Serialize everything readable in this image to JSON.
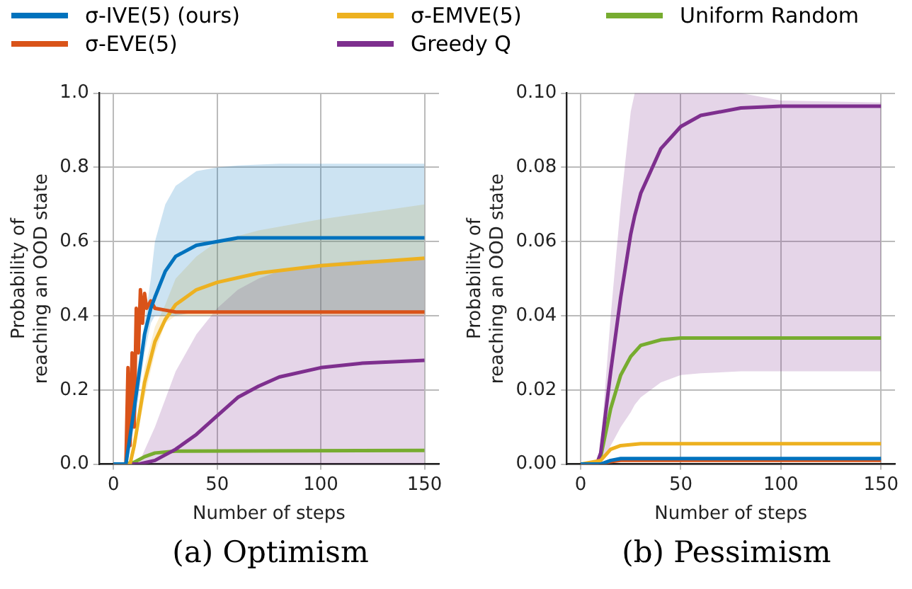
{
  "chart_data": [
    {
      "type": "line",
      "title": "(a) Optimism",
      "xlabel": "Number of steps",
      "ylabel": "Probability of reaching an OOD state",
      "legend": "top",
      "grid": true,
      "line_style": "solid",
      "marker": "none",
      "xlim": [
        -7,
        157
      ],
      "xticks": [
        0,
        50,
        100,
        150
      ],
      "ylim": [
        0,
        1
      ],
      "yticks": [
        {
          "value": 0,
          "label": "0.0"
        },
        {
          "value": 0.2,
          "label": "0.2"
        },
        {
          "value": 0.4,
          "label": "0.4"
        },
        {
          "value": 0.6,
          "label": "0.6"
        },
        {
          "value": 0.8,
          "label": "0.8"
        },
        {
          "value": 1,
          "label": "1.0"
        }
      ],
      "series": [
        {
          "name": "σ-IVE(5) (ours)",
          "color": "#0072bd",
          "x": [
            0,
            6,
            10,
            15,
            18,
            20,
            25,
            30,
            40,
            50,
            60,
            80,
            100,
            150
          ],
          "values": [
            0,
            0,
            0.15,
            0.35,
            0.42,
            0.45,
            0.52,
            0.56,
            0.59,
            0.6,
            0.61,
            0.61,
            0.61,
            0.61
          ],
          "lower": [
            0,
            0,
            0.1,
            0.3,
            0.38,
            0.4,
            0.4,
            0.4,
            0.41,
            0.41,
            0.41,
            0.41,
            0.41,
            0.41
          ],
          "upper": [
            0,
            0,
            0.2,
            0.38,
            0.5,
            0.6,
            0.7,
            0.75,
            0.79,
            0.8,
            0.805,
            0.81,
            0.81,
            0.81
          ]
        },
        {
          "name": "σ-EVE(5)",
          "color": "#d95319",
          "x": [
            0,
            6,
            7,
            8,
            9,
            10,
            11,
            12,
            13,
            14,
            15,
            16,
            18,
            20,
            25,
            30,
            40,
            150
          ],
          "values": [
            0,
            0,
            0.26,
            0.05,
            0.3,
            0.1,
            0.42,
            0.3,
            0.47,
            0.38,
            0.46,
            0.42,
            0.44,
            0.42,
            0.415,
            0.41,
            0.41,
            0.41
          ]
        },
        {
          "name": "σ-EMVE(5)",
          "color": "#edb120",
          "x": [
            0,
            8,
            10,
            15,
            20,
            25,
            30,
            40,
            50,
            70,
            100,
            150
          ],
          "values": [
            0,
            0,
            0.05,
            0.22,
            0.33,
            0.39,
            0.43,
            0.47,
            0.49,
            0.515,
            0.535,
            0.555
          ],
          "lower": [
            0,
            0,
            0.03,
            0.18,
            0.3,
            0.38,
            0.4,
            0.4,
            0.4,
            0.4,
            0.4,
            0.4
          ],
          "upper": [
            0,
            0,
            0.07,
            0.26,
            0.37,
            0.43,
            0.5,
            0.56,
            0.6,
            0.63,
            0.66,
            0.7
          ]
        },
        {
          "name": "Greedy Q",
          "color": "#7e2f8e",
          "x": [
            0,
            12,
            20,
            30,
            40,
            50,
            60,
            70,
            80,
            100,
            120,
            150
          ],
          "values": [
            0,
            0,
            0.01,
            0.04,
            0.08,
            0.13,
            0.18,
            0.21,
            0.235,
            0.26,
            0.272,
            0.28
          ],
          "lower": [
            0,
            0,
            0,
            0,
            0,
            0,
            0,
            0,
            0,
            0,
            0,
            0
          ],
          "upper": [
            0,
            0,
            0.1,
            0.25,
            0.35,
            0.42,
            0.47,
            0.5,
            0.52,
            0.54,
            0.55,
            0.555
          ]
        },
        {
          "name": "Uniform Random",
          "color": "#77ac30",
          "x": [
            0,
            5,
            10,
            15,
            20,
            30,
            150
          ],
          "values": [
            0,
            0,
            0.005,
            0.02,
            0.03,
            0.035,
            0.037
          ]
        }
      ]
    },
    {
      "type": "line",
      "title": "(b) Pessimism",
      "xlabel": "Number of steps",
      "ylabel": "Probability of reaching an OOD state",
      "legend": false,
      "grid": true,
      "line_style": "solid",
      "marker": "none",
      "xlim": [
        -7,
        157
      ],
      "xticks": [
        0,
        50,
        100,
        150
      ],
      "ylim": [
        0,
        0.1
      ],
      "yticks": [
        {
          "value": 0,
          "label": "0.00"
        },
        {
          "value": 0.02,
          "label": "0.02"
        },
        {
          "value": 0.04,
          "label": "0.04"
        },
        {
          "value": 0.06,
          "label": "0.06"
        },
        {
          "value": 0.08,
          "label": "0.08"
        },
        {
          "value": 0.1,
          "label": "0.10"
        }
      ],
      "series": [
        {
          "color": "#0072bd",
          "x": [
            0,
            10,
            15,
            20,
            150
          ],
          "values": [
            0,
            0,
            0.001,
            0.0015,
            0.0015
          ]
        },
        {
          "color": "#d95319",
          "x": [
            0,
            10,
            15,
            20,
            150
          ],
          "values": [
            0,
            0,
            0.0007,
            0.001,
            0.001
          ]
        },
        {
          "color": "#edb120",
          "x": [
            0,
            10,
            15,
            20,
            30,
            150
          ],
          "values": [
            0,
            0.001,
            0.004,
            0.005,
            0.0055,
            0.0055
          ]
        },
        {
          "color": "#7e2f8e",
          "x": [
            0,
            8,
            10,
            15,
            20,
            25,
            27,
            30,
            40,
            50,
            60,
            80,
            100,
            150
          ],
          "values": [
            0,
            0,
            0.003,
            0.025,
            0.045,
            0.062,
            0.067,
            0.073,
            0.085,
            0.091,
            0.094,
            0.096,
            0.0965,
            0.0965
          ],
          "lower": [
            0,
            0,
            0,
            0.005,
            0.01,
            0.014,
            0.016,
            0.018,
            0.022,
            0.024,
            0.0245,
            0.025,
            0.025,
            0.025
          ],
          "upper": [
            0,
            0,
            0.005,
            0.04,
            0.07,
            0.095,
            0.1,
            0.1,
            0.1,
            0.1,
            0.1,
            0.1,
            0.098,
            0.0975
          ]
        },
        {
          "color": "#77ac30",
          "x": [
            0,
            8,
            10,
            15,
            20,
            25,
            30,
            40,
            50,
            150
          ],
          "values": [
            0,
            0,
            0.002,
            0.015,
            0.024,
            0.029,
            0.032,
            0.0335,
            0.034,
            0.034
          ]
        }
      ]
    }
  ]
}
